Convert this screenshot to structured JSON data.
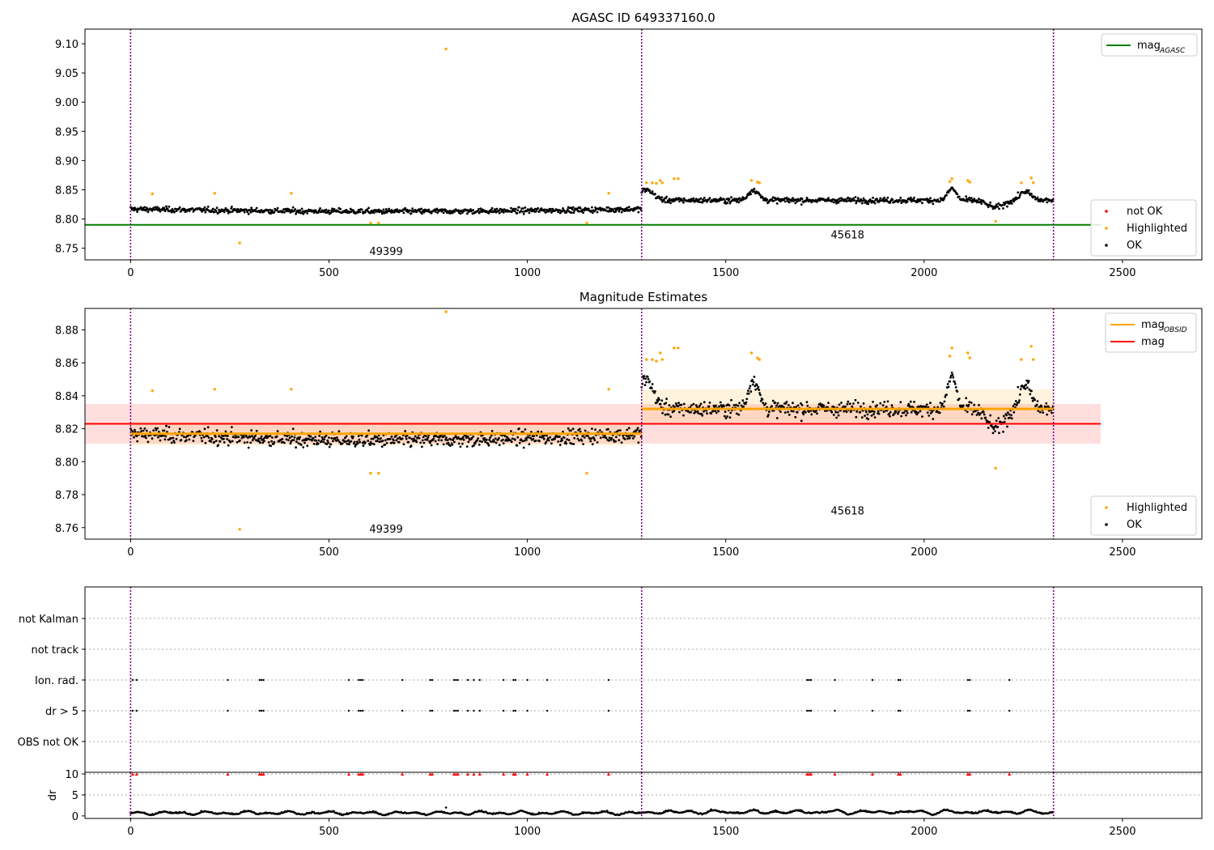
{
  "figure": {
    "background": "#ffffff"
  },
  "chart_data": [
    {
      "type": "scatter",
      "title": "AGASC ID 649337160.0",
      "xlim": [
        -115,
        2700
      ],
      "ylim": [
        8.73,
        9.125
      ],
      "xticks": [
        0,
        500,
        1000,
        1500,
        2000,
        2500
      ],
      "xtick_labels": [
        "0",
        "500",
        "1000",
        "1500",
        "2000",
        "2500"
      ],
      "yticks": [
        8.75,
        8.8,
        8.85,
        8.9,
        8.95,
        9.0,
        9.05,
        9.1
      ],
      "ytick_labels": [
        "8.75",
        "8.80",
        "8.85",
        "8.90",
        "8.95",
        "9.00",
        "9.05",
        "9.10"
      ],
      "obsid_boundaries": [
        0,
        1288,
        2326
      ],
      "obsid_labels": [
        {
          "text": "49399",
          "x": 644,
          "y": 8.738
        },
        {
          "text": "45618",
          "x": 1807,
          "y": 8.767
        }
      ],
      "mag_agasc": 8.79,
      "mag_agasc_xrange": [
        -115,
        2445
      ],
      "segments": [
        {
          "x": [
            0,
            1288
          ],
          "base": 8.817,
          "noise": 0.0065,
          "trend": -0.004
        },
        {
          "x": [
            1288,
            2326
          ],
          "base": 8.832,
          "noise": 0.0065,
          "trend": 0.0
        }
      ],
      "highlighted_points": [
        [
          55,
          8.843
        ],
        [
          212,
          8.844
        ],
        [
          275,
          8.759
        ],
        [
          405,
          8.844
        ],
        [
          605,
          8.793
        ],
        [
          625,
          8.793
        ],
        [
          795,
          9.091
        ],
        [
          1150,
          8.793
        ],
        [
          1205,
          8.844
        ],
        [
          1300,
          8.862
        ],
        [
          1315,
          8.862
        ],
        [
          1325,
          8.861
        ],
        [
          1335,
          8.866
        ],
        [
          1340,
          8.862
        ],
        [
          1370,
          8.869
        ],
        [
          1380,
          8.869
        ],
        [
          1565,
          8.866
        ],
        [
          1580,
          8.863
        ],
        [
          1585,
          8.862
        ],
        [
          2065,
          8.864
        ],
        [
          2070,
          8.869
        ],
        [
          2110,
          8.866
        ],
        [
          2115,
          8.863
        ],
        [
          2180,
          8.796
        ],
        [
          2245,
          8.862
        ],
        [
          2270,
          8.87
        ],
        [
          2275,
          8.862
        ]
      ],
      "legend_top": [
        {
          "label": "mag",
          "sub": "AGASC",
          "color": "#008000",
          "kind": "line"
        }
      ],
      "legend_bottom": [
        {
          "label": "not OK",
          "color": "#ff0000",
          "kind": "dot"
        },
        {
          "label": "Highlighted",
          "color": "#ffa500",
          "kind": "dot"
        },
        {
          "label": "OK",
          "color": "#000000",
          "kind": "dot"
        }
      ]
    },
    {
      "type": "scatter",
      "title": "Magnitude Estimates",
      "xlim": [
        -115,
        2700
      ],
      "ylim": [
        8.753,
        8.893
      ],
      "xticks": [
        0,
        500,
        1000,
        1500,
        2000,
        2500
      ],
      "xtick_labels": [
        "0",
        "500",
        "1000",
        "1500",
        "2000",
        "2500"
      ],
      "yticks": [
        8.76,
        8.78,
        8.8,
        8.82,
        8.84,
        8.86,
        8.88
      ],
      "ytick_labels": [
        "8.76",
        "8.78",
        "8.80",
        "8.82",
        "8.84",
        "8.86",
        "8.88"
      ],
      "obsid_boundaries": [
        0,
        1288,
        2326
      ],
      "obsid_labels": [
        {
          "text": "49399",
          "x": 644,
          "y": 8.757
        },
        {
          "text": "45618",
          "x": 1807,
          "y": 8.768
        }
      ],
      "mag": 8.823,
      "mag_band": [
        8.811,
        8.835
      ],
      "mag_xrange": [
        -115,
        2445
      ],
      "mag_obsid": [
        {
          "x": [
            0,
            1288
          ],
          "value": 8.817,
          "band": [
            8.81,
            8.824
          ]
        },
        {
          "x": [
            1288,
            2326
          ],
          "value": 8.832,
          "band": [
            8.824,
            8.844
          ]
        }
      ],
      "segments": [
        {
          "x": [
            0,
            1288
          ],
          "base": 8.817,
          "noise": 0.0065,
          "trend": -0.004
        },
        {
          "x": [
            1288,
            2326
          ],
          "base": 8.832,
          "noise": 0.0065,
          "trend": 0.0
        }
      ],
      "highlighted_points": [
        [
          55,
          8.843
        ],
        [
          212,
          8.844
        ],
        [
          275,
          8.759
        ],
        [
          405,
          8.844
        ],
        [
          605,
          8.793
        ],
        [
          625,
          8.793
        ],
        [
          795,
          8.891
        ],
        [
          1150,
          8.793
        ],
        [
          1205,
          8.844
        ],
        [
          1300,
          8.862
        ],
        [
          1315,
          8.862
        ],
        [
          1325,
          8.861
        ],
        [
          1335,
          8.866
        ],
        [
          1340,
          8.862
        ],
        [
          1370,
          8.869
        ],
        [
          1380,
          8.869
        ],
        [
          1565,
          8.866
        ],
        [
          1580,
          8.863
        ],
        [
          1585,
          8.862
        ],
        [
          2065,
          8.864
        ],
        [
          2070,
          8.869
        ],
        [
          2110,
          8.866
        ],
        [
          2115,
          8.863
        ],
        [
          2180,
          8.796
        ],
        [
          2245,
          8.862
        ],
        [
          2270,
          8.87
        ],
        [
          2275,
          8.862
        ]
      ],
      "legend_top": [
        {
          "label": "mag",
          "sub": "OBSID",
          "color": "#ffa500",
          "kind": "line"
        },
        {
          "label": "mag",
          "sub": "",
          "color": "#ff0000",
          "kind": "line"
        }
      ],
      "legend_bottom": [
        {
          "label": "Highlighted",
          "color": "#ffa500",
          "kind": "dot"
        },
        {
          "label": "OK",
          "color": "#000000",
          "kind": "dot"
        }
      ]
    },
    {
      "type": "scatter",
      "title": "",
      "xlim": [
        -115,
        2700
      ],
      "xticks": [
        0,
        500,
        1000,
        1500,
        2000,
        2500
      ],
      "xtick_labels": [
        "0",
        "500",
        "1000",
        "1500",
        "2000",
        "2500"
      ],
      "categories": [
        "not Kalman",
        "not track",
        "Ion. rad.",
        "dr > 5",
        "OBS not OK"
      ],
      "obsid_boundaries": [
        0,
        1288,
        2326
      ],
      "flag_x": [
        5,
        15,
        245,
        325,
        330,
        335,
        550,
        575,
        580,
        585,
        685,
        755,
        760,
        815,
        820,
        825,
        850,
        865,
        880,
        940,
        965,
        970,
        1000,
        1050,
        1205,
        1705,
        1710,
        1715,
        1775,
        1870,
        1935,
        1940,
        2110,
        2115,
        2215
      ]
    },
    {
      "type": "scatter",
      "title": "",
      "ylabel": "dr",
      "xlim": [
        -115,
        2700
      ],
      "ylim": [
        -0.6,
        10.4
      ],
      "xticks": [
        0,
        500,
        1000,
        1500,
        2000,
        2500
      ],
      "xtick_labels": [
        "0",
        "500",
        "1000",
        "1500",
        "2000",
        "2500"
      ],
      "yticks": [
        0,
        5,
        10
      ],
      "ytick_labels": [
        "0",
        "5",
        "10"
      ],
      "obsid_boundaries": [
        0,
        1288,
        2326
      ],
      "dr_range": [
        0,
        2326
      ],
      "dr_outlier": [
        795,
        2.0
      ],
      "clipped_marker_y": 10
    }
  ]
}
